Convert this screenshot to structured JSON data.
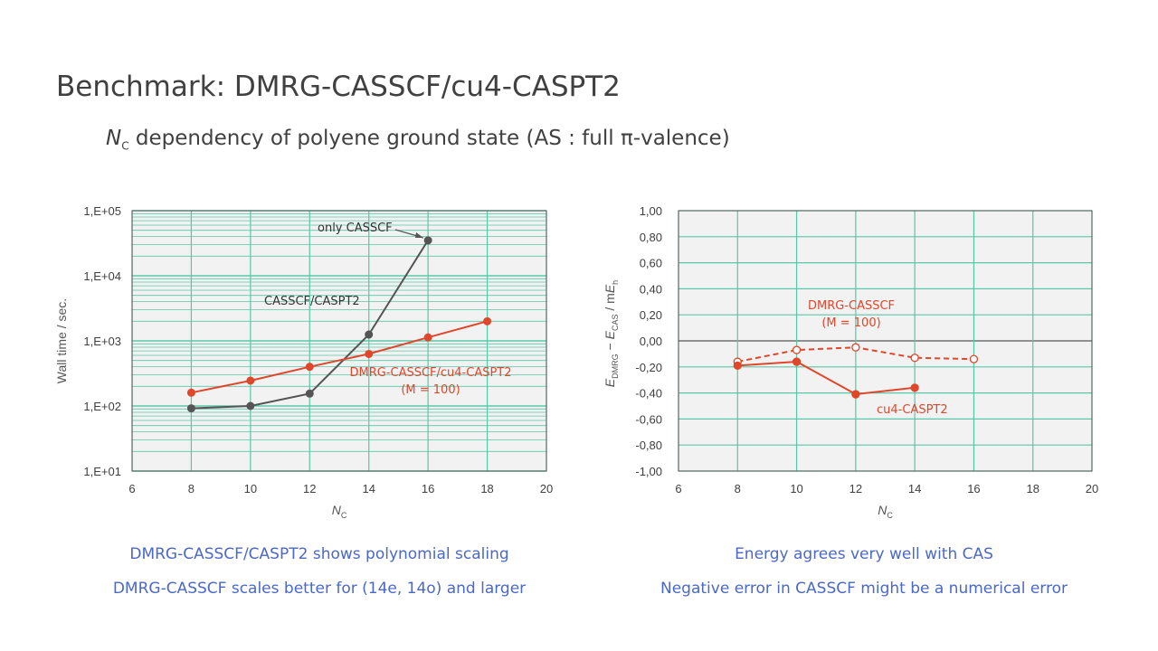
{
  "slide": {
    "title": "Benchmark: DMRG-CASSCF/cu4-CASPT2",
    "subtitle_var": "N",
    "subtitle_sub": "C",
    "subtitle_rest": " dependency of polyene ground state (AS : full π-valence)"
  },
  "captions": {
    "left_1": "DMRG-CASSCF/CASPT2 shows polynomial scaling",
    "left_2": "DMRG-CASSCF scales better for (14e, 14o) and larger",
    "right_1": "Energy agrees very well with CAS",
    "right_2": "Negative error in CASSCF might be a numerical error"
  },
  "colors": {
    "grid": "#5ac8a8",
    "plot_bg": "#f2f2f2",
    "red": "#e0462a",
    "gray": "#555555",
    "caption": "#4a68c8"
  },
  "chart_data": [
    {
      "type": "line",
      "xlabel": "NC",
      "ylabel": "Wall time / sec.",
      "xlim": [
        6,
        20
      ],
      "xticks": [
        "6",
        "8",
        "10",
        "12",
        "14",
        "16",
        "18",
        "20"
      ],
      "ylim": [
        10,
        100000
      ],
      "yscale": "log",
      "yticks": [
        "1,E+01",
        "1,E+02",
        "1,E+03",
        "1,E+04",
        "1,E+05"
      ],
      "grid": true,
      "series": [
        {
          "name": "CASSCF/CASPT2",
          "x": [
            8,
            10,
            12,
            14,
            16
          ],
          "y": [
            92,
            100,
            155,
            1250,
            35000
          ],
          "color": "#555555",
          "style": "solid",
          "marker": "filled"
        },
        {
          "name": "DMRG-CASSCF/cu4-CASPT2",
          "x": [
            8,
            10,
            12,
            14,
            16,
            18
          ],
          "y": [
            160,
            245,
            400,
            630,
            1130,
            2000
          ],
          "color": "#e0462a",
          "style": "solid",
          "marker": "filled"
        }
      ],
      "annotations": {
        "only_casscf": "only CASSCF",
        "casscf_caspt2": "CASSCF/CASPT2",
        "dmrg_line1": "DMRG-CASSCF/cu4-CASPT2",
        "dmrg_line2": "(M = 100)"
      }
    },
    {
      "type": "line",
      "xlabel": "NC",
      "ylabel": "EDMRG − ECAS / mEh",
      "xlim": [
        6,
        20
      ],
      "xticks": [
        "6",
        "8",
        "10",
        "12",
        "14",
        "16",
        "18",
        "20"
      ],
      "ylim": [
        -1.0,
        1.0
      ],
      "yticks": [
        "1,00",
        "0,80",
        "0,60",
        "0,40",
        "0,20",
        "0,00",
        "-0,20",
        "-0,40",
        "-0,60",
        "-0,80",
        "-1,00"
      ],
      "grid": true,
      "series": [
        {
          "name": "DMRG-CASSCF",
          "x": [
            8,
            10,
            12,
            14,
            16
          ],
          "y": [
            -0.16,
            -0.07,
            -0.05,
            -0.13,
            -0.14
          ],
          "color": "#e0462a",
          "style": "dashed",
          "marker": "open"
        },
        {
          "name": "cu4-CASPT2",
          "x": [
            8,
            10,
            12,
            14
          ],
          "y": [
            -0.19,
            -0.16,
            -0.41,
            -0.36
          ],
          "color": "#e0462a",
          "style": "solid",
          "marker": "filled"
        }
      ],
      "annotations": {
        "dmrg_casscf_line1": "DMRG-CASSCF",
        "dmrg_casscf_line2": "(M = 100)",
        "cu4": "cu4-CASPT2"
      }
    }
  ]
}
